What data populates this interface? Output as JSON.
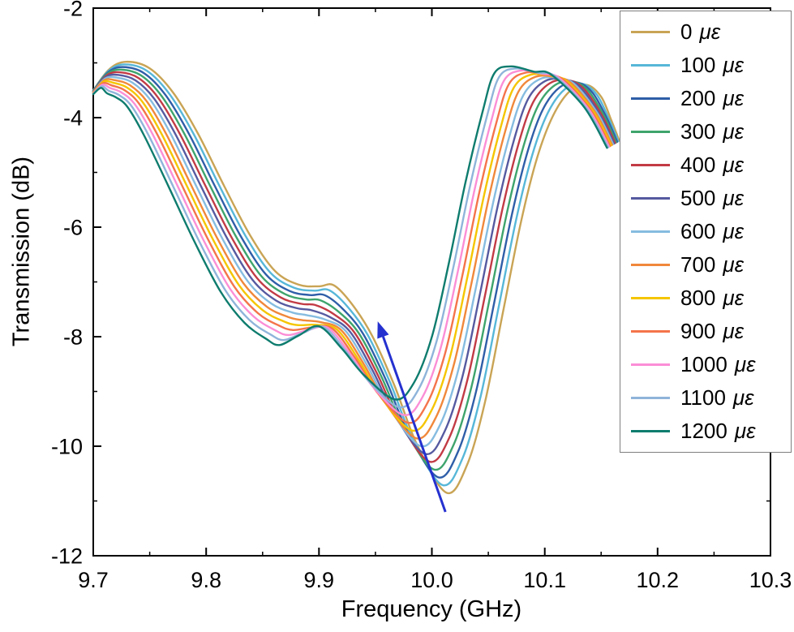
{
  "figure": {
    "background": "#ffffff",
    "axis_color": "#000000"
  },
  "chart_data": {
    "type": "line",
    "title": "",
    "xlabel": "Frequency (GHz)",
    "ylabel": "Transmission (dB)",
    "xlim": [
      9.7,
      10.3
    ],
    "ylim": [
      -12,
      -2
    ],
    "xticks": [
      9.7,
      9.8,
      9.9,
      10.0,
      10.1,
      10.2,
      10.3
    ],
    "xtick_labels": [
      "9.7",
      "9.8",
      "9.9",
      "10.0",
      "10.1",
      "10.2",
      "10.3"
    ],
    "x_minor_tick_step": 0.05,
    "yticks": [
      -2,
      -4,
      -6,
      -8,
      -10,
      -12
    ],
    "ytick_labels": [
      "-2",
      "-4",
      "-6",
      "-8",
      "-10",
      "-12"
    ],
    "y_minor_ticks": [
      -3,
      -5,
      -7,
      -9,
      -11
    ],
    "grid": "off",
    "legend_position": "top-right-inside",
    "series": [
      {
        "label": "0 με",
        "strain_ue": 0,
        "color": "#C9A455"
      },
      {
        "label": "100 με",
        "strain_ue": 100,
        "color": "#57B7D8"
      },
      {
        "label": "200 με",
        "strain_ue": 200,
        "color": "#2F5EA8"
      },
      {
        "label": "300 με",
        "strain_ue": 300,
        "color": "#3EA46C"
      },
      {
        "label": "400 με",
        "strain_ue": 400,
        "color": "#C23B45"
      },
      {
        "label": "500 με",
        "strain_ue": 500,
        "color": "#565AA0"
      },
      {
        "label": "600 με",
        "strain_ue": 600,
        "color": "#86BCE0"
      },
      {
        "label": "700 με",
        "strain_ue": 700,
        "color": "#F0883B"
      },
      {
        "label": "800 με",
        "strain_ue": 800,
        "color": "#F5C500"
      },
      {
        "label": "900 με",
        "strain_ue": 900,
        "color": "#F4744B"
      },
      {
        "label": "1000 με",
        "strain_ue": 1000,
        "color": "#FB8ED6"
      },
      {
        "label": "1100 με",
        "strain_ue": 1100,
        "color": "#8FB4DA"
      },
      {
        "label": "1200 με",
        "strain_ue": 1200,
        "color": "#0E7C6E"
      }
    ],
    "keypoints_base_0ue_with_shift_per_100ue": [
      {
        "x": 9.7,
        "y": -3.5,
        "dx": 0.0,
        "dy": -0.006
      },
      {
        "x": 9.714,
        "y": -3.12,
        "dx": -0.0006,
        "dy": -0.028
      },
      {
        "x": 9.729,
        "y": -2.98,
        "dx": -0.0014,
        "dy": -0.048
      },
      {
        "x": 9.75,
        "y": -3.1,
        "dx": -0.0025,
        "dy": -0.044
      },
      {
        "x": 9.771,
        "y": -3.55,
        "dx": -0.0034,
        "dy": -0.021
      },
      {
        "x": 9.793,
        "y": -4.3,
        "dx": -0.004,
        "dy": -0.002
      },
      {
        "x": 9.816,
        "y": -5.25,
        "dx": -0.0041,
        "dy": -0.001
      },
      {
        "x": 9.839,
        "y": -6.15,
        "dx": -0.0041,
        "dy": -0.01
      },
      {
        "x": 9.861,
        "y": -6.8,
        "dx": -0.004,
        "dy": -0.032
      },
      {
        "x": 9.882,
        "y": -7.05,
        "dx": -0.004,
        "dy": -0.058
      },
      {
        "x": 9.9,
        "y": -7.08,
        "dx": -0.0039,
        "dy": -0.08
      },
      {
        "x": 9.913,
        "y": -7.06,
        "dx": -0.004,
        "dy": -0.091
      },
      {
        "x": 9.929,
        "y": -7.4,
        "dx": -0.0039,
        "dy": -0.048
      },
      {
        "x": 9.947,
        "y": -7.98,
        "dx": -0.0039,
        "dy": 0.014
      },
      {
        "x": 9.967,
        "y": -8.9,
        "dx": -0.0039,
        "dy": 0.057
      },
      {
        "x": 9.987,
        "y": -9.98,
        "dx": -0.0039,
        "dy": 0.106
      },
      {
        "x": 10.013,
        "y": -10.85,
        "dx": -0.0038,
        "dy": 0.142
      },
      {
        "x": 10.031,
        "y": -10.35,
        "dx": -0.0039,
        "dy": 0.126
      },
      {
        "x": 10.047,
        "y": -9.2,
        "dx": -0.0039,
        "dy": 0.101
      },
      {
        "x": 10.063,
        "y": -7.55,
        "dx": -0.004,
        "dy": 0.074
      },
      {
        "x": 10.079,
        "y": -5.9,
        "dx": -0.0041,
        "dy": 0.06
      },
      {
        "x": 10.093,
        "y": -4.75,
        "dx": -0.004,
        "dy": 0.072
      },
      {
        "x": 10.107,
        "y": -3.98,
        "dx": -0.0043,
        "dy": 0.066
      },
      {
        "x": 10.122,
        "y": -3.52,
        "dx": -0.0043,
        "dy": 0.038
      },
      {
        "x": 10.137,
        "y": -3.4,
        "dx": -0.0039,
        "dy": 0.02
      },
      {
        "x": 10.15,
        "y": -3.62,
        "dx": -0.0037,
        "dy": 0.034
      },
      {
        "x": 10.159,
        "y": -4.05,
        "dx": -0.002,
        "dy": 0.02
      },
      {
        "x": 10.166,
        "y": -4.42,
        "dx": -0.0009,
        "dy": -0.011
      }
    ],
    "annotation_arrow": {
      "color": "#2531CF",
      "from": [
        10.012,
        -11.2
      ],
      "to": [
        9.952,
        -7.72
      ]
    }
  }
}
